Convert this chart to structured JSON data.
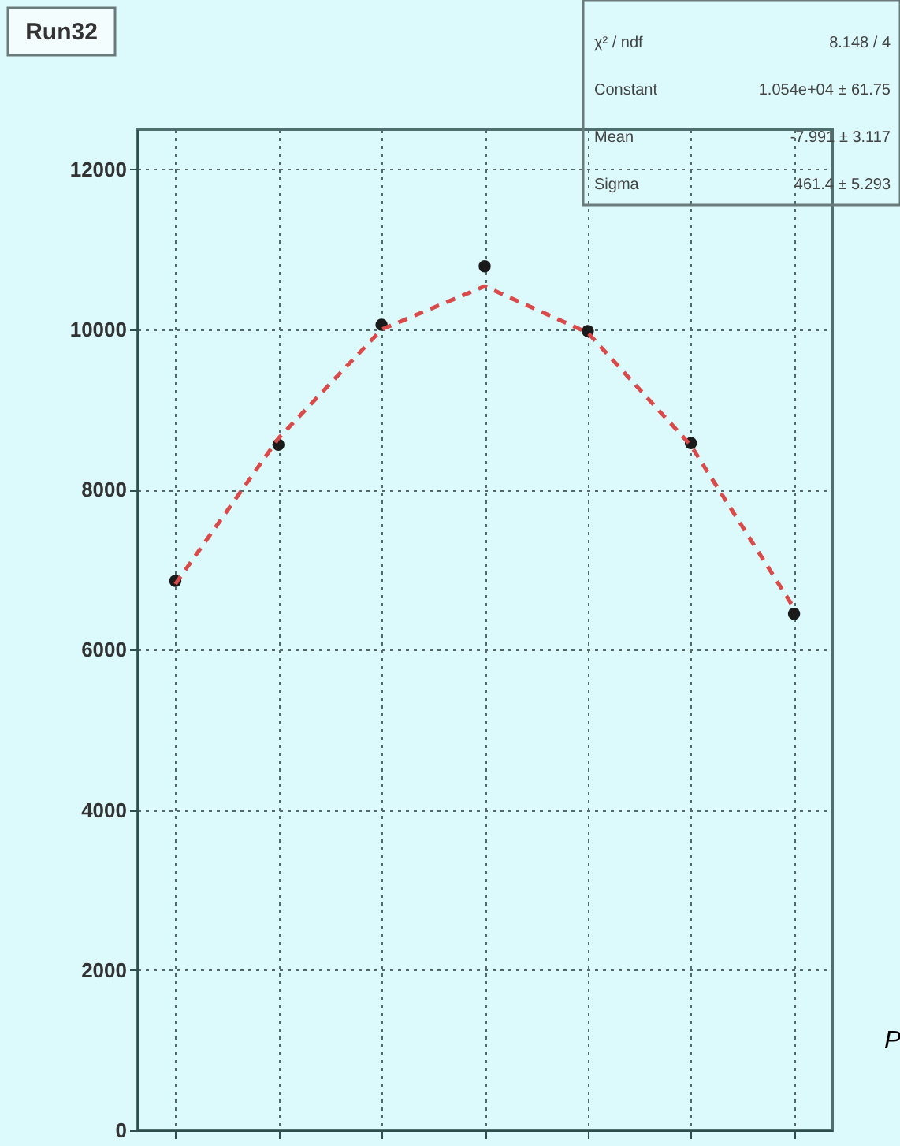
{
  "chart_data": {
    "type": "scatter",
    "title": "Run32",
    "categories": [
      null,
      null,
      null,
      null,
      null,
      null,
      null
    ],
    "series": [
      {
        "color": "#1a1a1a",
        "marker": "circle",
        "values": [
          6860,
          8560,
          10060,
          10790,
          9980,
          8580,
          6450
        ]
      },
      {
        "type": "line",
        "color": "#d94a4a",
        "line_style": "dashed",
        "marker": "none",
        "values": [
          6820,
          8640,
          10000,
          10540,
          9960,
          8550,
          6520
        ]
      }
    ],
    "ylim": [
      0,
      12500
    ],
    "yticks": [
      0,
      2000,
      4000,
      6000,
      8000,
      10000,
      12000
    ],
    "grid": true,
    "tick_labels": "y",
    "annotations": [
      "χ² / ndf",
      "8.148 / 4",
      "Constant",
      "1.054e+04 ± 61.75",
      "Mean",
      "-7.991 ± 3.117",
      "Sigma",
      "461.4 ± 5.293",
      "P"
    ]
  }
}
